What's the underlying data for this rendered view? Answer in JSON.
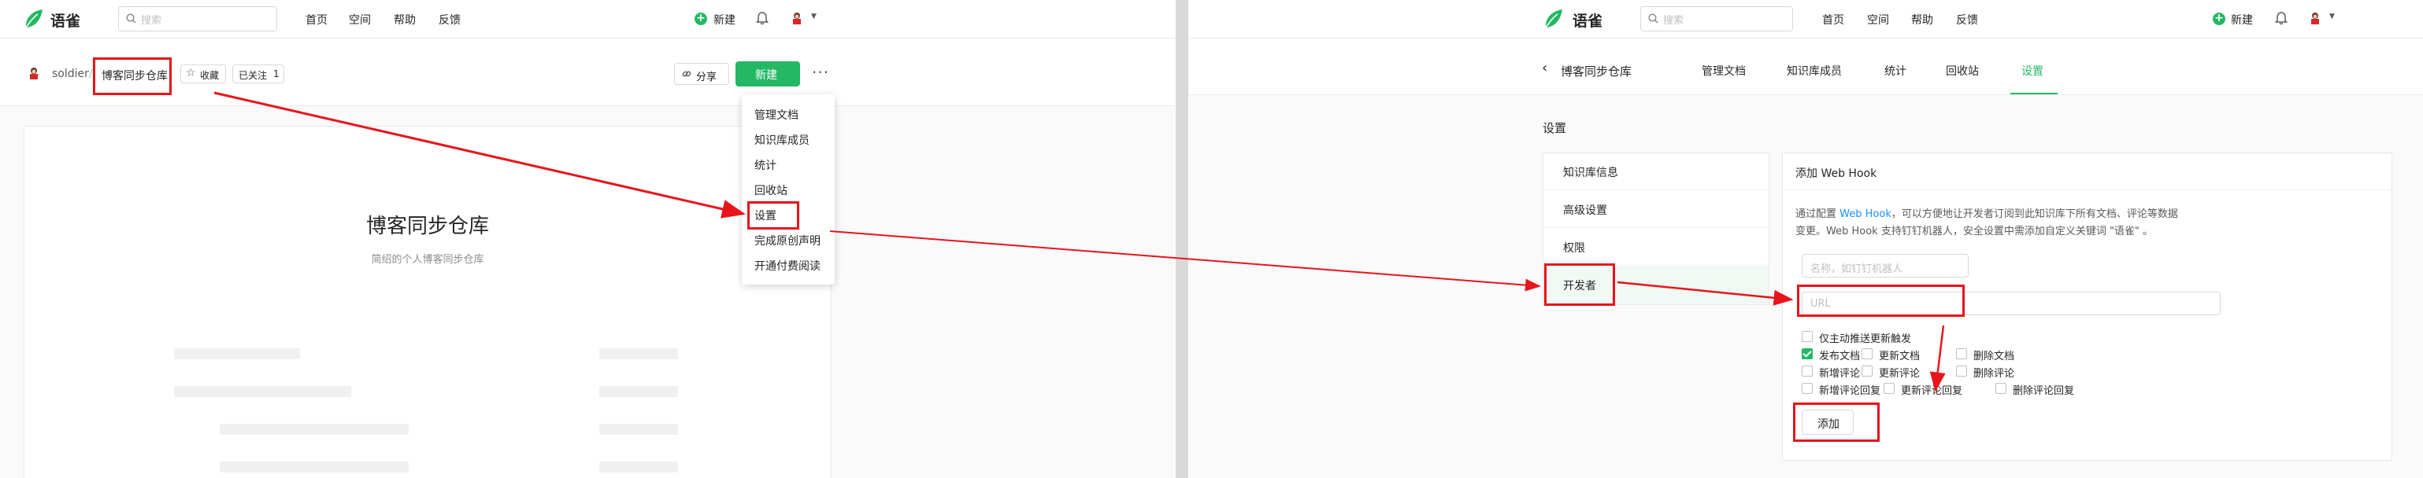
{
  "brand": {
    "name": "语雀"
  },
  "search": {
    "placeholder": "搜索"
  },
  "top_nav": [
    "首页",
    "空间",
    "帮助",
    "反馈"
  ],
  "new_label": "新建",
  "left": {
    "user": "soldier",
    "separator": "/",
    "repo_name": "博客同步仓库",
    "favorite_label": "收藏",
    "follow_label": "已关注",
    "follow_count": "1",
    "share_label": "分享",
    "new_button": "新建",
    "more_icon": "more-icon",
    "menu_items": [
      "管理文档",
      "知识库成员",
      "统计",
      "回收站",
      "设置",
      "完成原创声明",
      "开通付费阅读"
    ],
    "book_title": "博客同步仓库",
    "book_desc": "简绍的个人博客同步仓库"
  },
  "right": {
    "back_title": "博客同步仓库",
    "tabs": [
      "管理文档",
      "知识库成员",
      "统计",
      "回收站",
      "设置"
    ],
    "active_tab": "设置",
    "page_heading": "设置",
    "sidebar": [
      "知识库信息",
      "高级设置",
      "权限",
      "开发者"
    ],
    "webhook": {
      "title": "添加 Web Hook",
      "desc_prefix": "通过配置",
      "desc_link": "Web Hook",
      "desc_rest": "，可以方便地让开发者订阅到此知识库下所有文档、评论等数据",
      "desc_line2": "变更。Web Hook 支持钉钉机器人，安全设置中需添加自定义关键词 \"语雀\" 。",
      "name_placeholder": "名称，如钉钉机器人",
      "url_placeholder": "URL",
      "only_push_label": "仅主动推送更新触发",
      "options": [
        {
          "label": "发布文档",
          "checked": true
        },
        {
          "label": "更新文档",
          "checked": false
        },
        {
          "label": "删除文档",
          "checked": false
        },
        {
          "label": "新增评论",
          "checked": false
        },
        {
          "label": "更新评论",
          "checked": false
        },
        {
          "label": "删除评论",
          "checked": false
        },
        {
          "label": "新增评论回复",
          "checked": false
        },
        {
          "label": "更新评论回复",
          "checked": false
        },
        {
          "label": "删除评论回复",
          "checked": false
        }
      ],
      "add_button": "添加"
    }
  },
  "colors": {
    "accent": "#25b864",
    "annotation": "#e8141b",
    "link": "#1890ff"
  }
}
